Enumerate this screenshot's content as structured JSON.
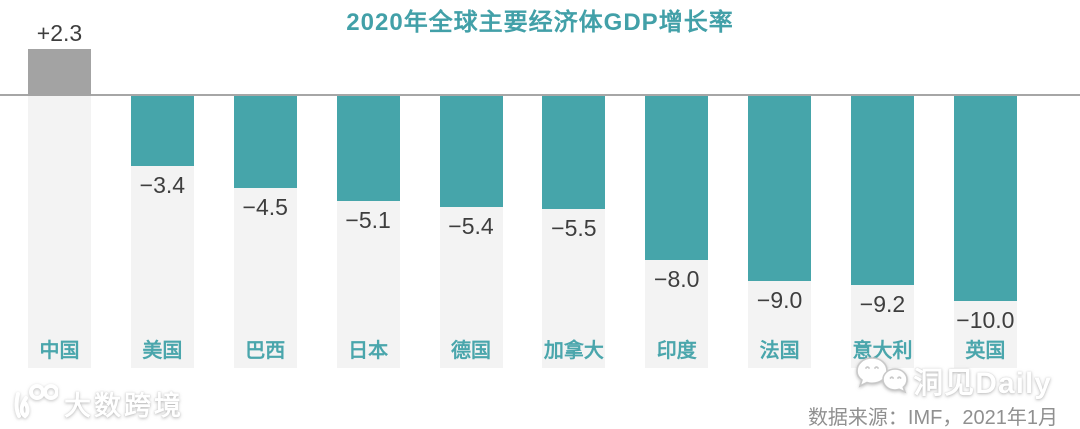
{
  "chart_data": {
    "type": "bar",
    "title": "2020年全球主要经济体GDP增长率",
    "categories": [
      "中国",
      "美国",
      "巴西",
      "日本",
      "德国",
      "加拿大",
      "印度",
      "法国",
      "意大利",
      "英国"
    ],
    "values": [
      2.3,
      -3.4,
      -4.5,
      -5.1,
      -5.4,
      -5.5,
      -8.0,
      -9.0,
      -9.2,
      -10.0
    ],
    "value_labels": [
      "+2.3",
      "−3.4",
      "−4.5",
      "−5.1",
      "−5.4",
      "−5.5",
      "−8.0",
      "−9.0",
      "−9.2",
      "−10.0"
    ],
    "xlabel": "",
    "ylabel": "",
    "ylim": [
      -10.5,
      3
    ],
    "grid": false,
    "legend": "none",
    "colors": {
      "positive_bar": "#a3a3a3",
      "negative_bar": "#46a5aa",
      "column_bg": "#f3f3f3",
      "axis_line": "#a6a6a6",
      "title": "#42a0a8",
      "category_label": "#4aa6ac",
      "value_label": "#3e3e3e"
    }
  },
  "footer": {
    "source": "数据来源：IMF，2021年1月"
  },
  "watermarks": {
    "left_brand": "大数跨境",
    "right_brand": "洞见Daily"
  }
}
